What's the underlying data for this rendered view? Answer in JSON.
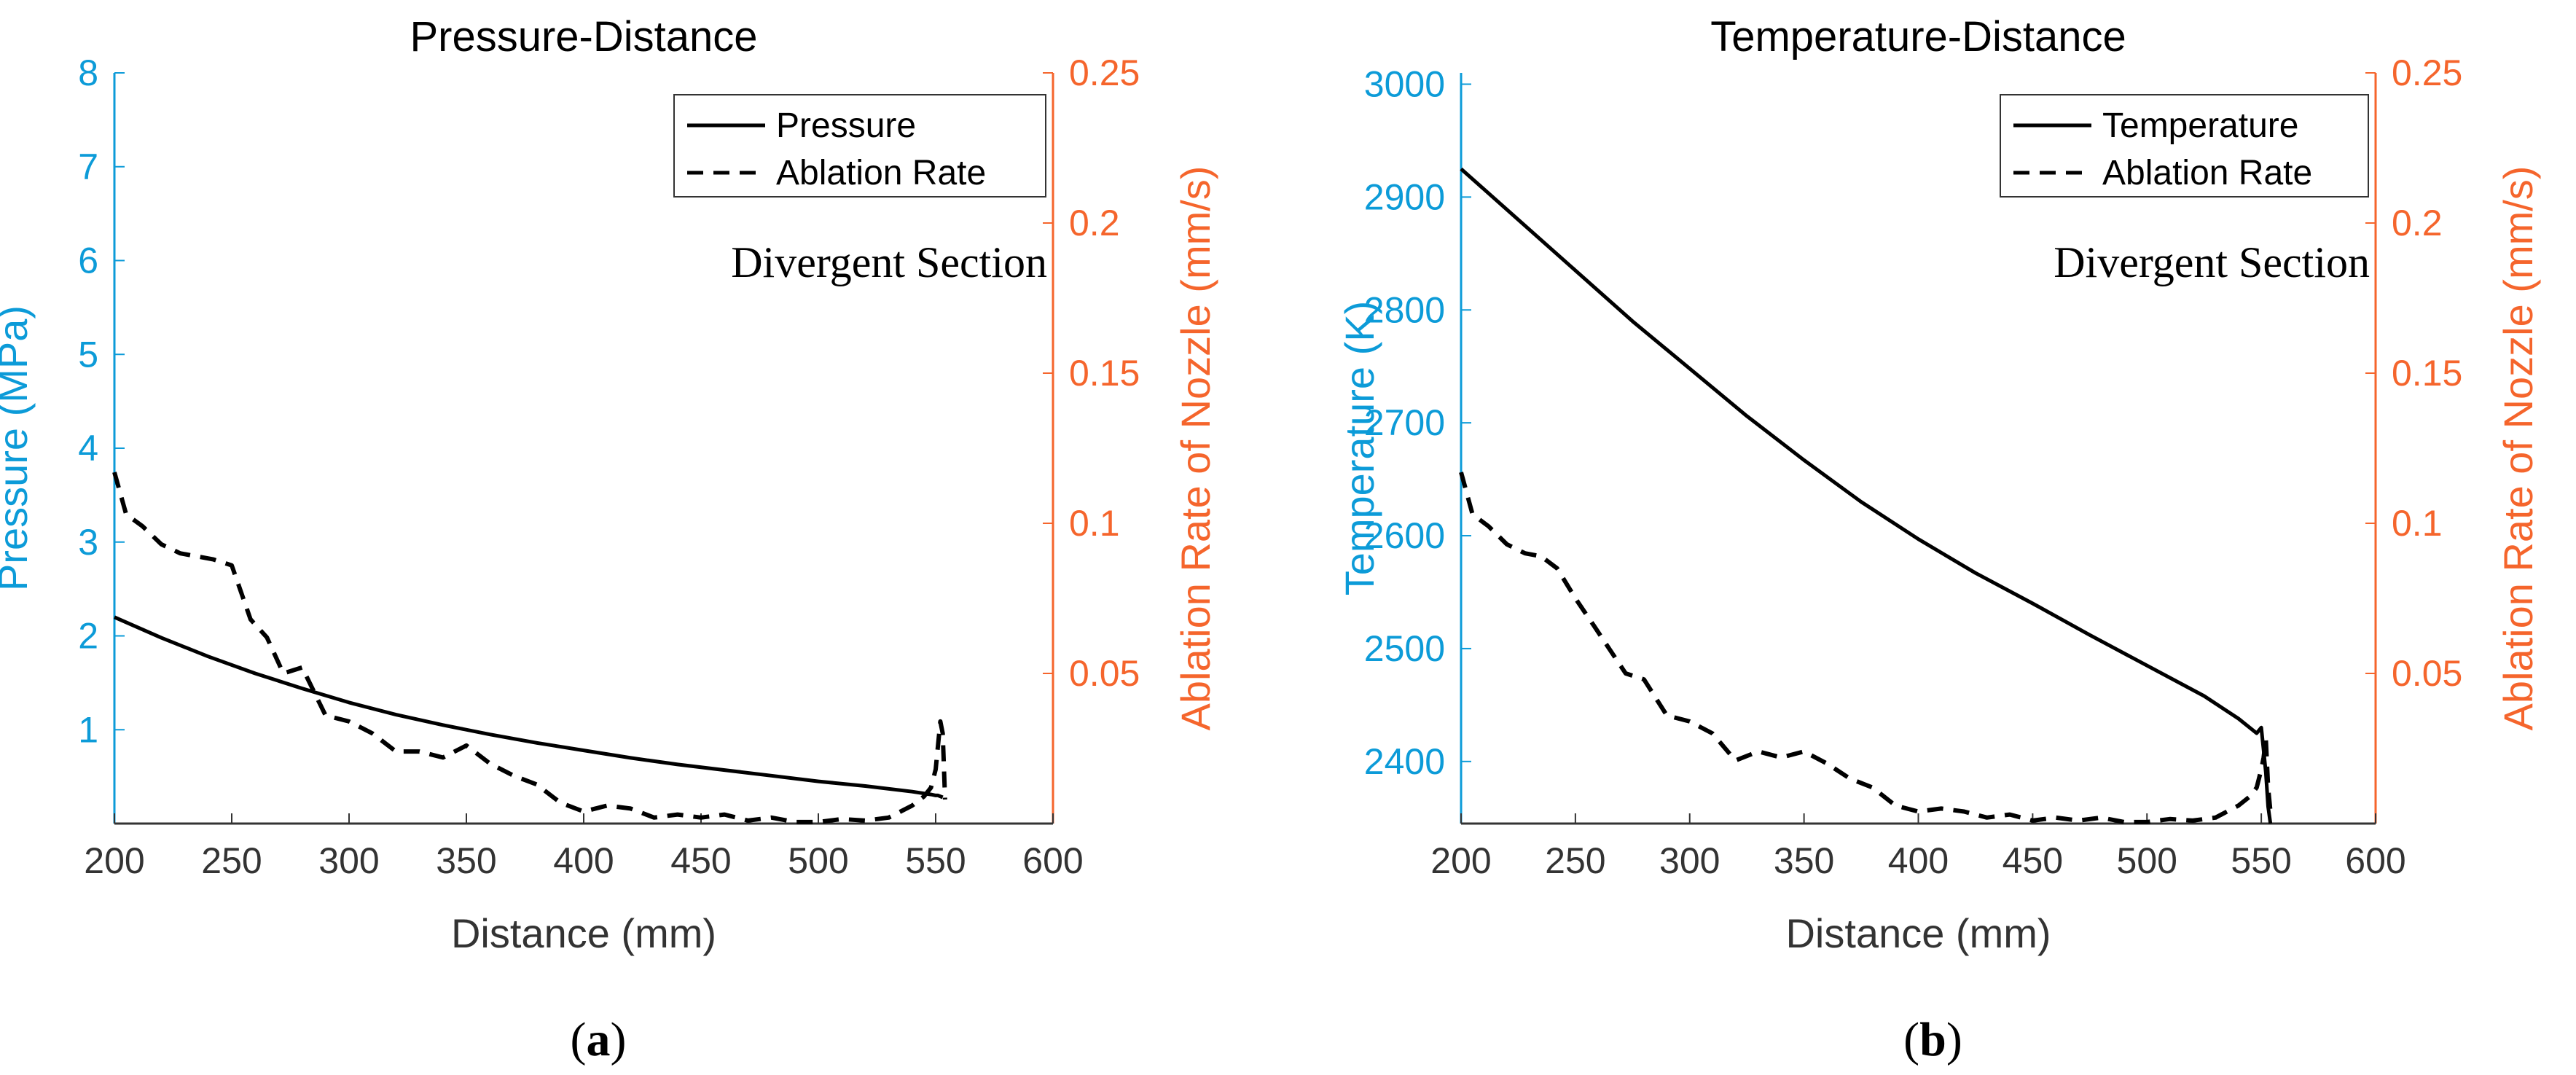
{
  "colors": {
    "left_axis": "#0c9bd8",
    "right_axis": "#f5652c",
    "bottom_axis": "#333333",
    "line": "#000000"
  },
  "chart_data": [
    {
      "type": "line",
      "panel": "a",
      "caption_prefix": "(",
      "caption_letter": "a",
      "caption_suffix": ")",
      "title": "Pressure-Distance",
      "xlabel": "Distance (mm)",
      "ylabel_left": "Pressure (MPa)",
      "ylabel_right": "Ablation Rate of Nozzle (mm/s)",
      "xlim": [
        200,
        600
      ],
      "ylim_left": [
        0,
        8
      ],
      "ylim_right": [
        0,
        0.25
      ],
      "xticks": [
        "200",
        "250",
        "300",
        "350",
        "400",
        "450",
        "500",
        "550",
        "600"
      ],
      "yticks_left": [
        "1",
        "2",
        "3",
        "4",
        "5",
        "6",
        "7",
        "8"
      ],
      "yticks_right": [
        "0.05",
        "0.1",
        "0.15",
        "0.2",
        "0.25"
      ],
      "legend_location": "top-right",
      "annotation": "Divergent Section",
      "series": [
        {
          "name": "Pressure",
          "axis": "left",
          "style": "solid",
          "x": [
            200,
            220,
            240,
            260,
            280,
            300,
            320,
            340,
            360,
            380,
            400,
            420,
            440,
            460,
            480,
            500,
            520,
            540,
            548,
            550,
            551,
            552,
            553
          ],
          "y": [
            2.2,
            1.98,
            1.78,
            1.6,
            1.44,
            1.29,
            1.16,
            1.05,
            0.95,
            0.86,
            0.78,
            0.7,
            0.63,
            0.57,
            0.51,
            0.45,
            0.4,
            0.34,
            0.31,
            0.3,
            0.3,
            0.29,
            0.28
          ]
        },
        {
          "name": "Ablation Rate",
          "axis": "right",
          "style": "dashed",
          "x": [
            200,
            205,
            212,
            220,
            228,
            235,
            242,
            250,
            258,
            265,
            272,
            280,
            290,
            300,
            310,
            320,
            330,
            340,
            350,
            360,
            370,
            380,
            390,
            400,
            410,
            420,
            430,
            440,
            450,
            460,
            470,
            480,
            490,
            500,
            510,
            520,
            530,
            540,
            545,
            548,
            550,
            551,
            552,
            553,
            554
          ],
          "y": [
            0.117,
            0.103,
            0.099,
            0.093,
            0.09,
            0.089,
            0.088,
            0.086,
            0.068,
            0.062,
            0.05,
            0.052,
            0.036,
            0.034,
            0.03,
            0.024,
            0.024,
            0.022,
            0.026,
            0.02,
            0.016,
            0.013,
            0.007,
            0.004,
            0.006,
            0.005,
            0.002,
            0.003,
            0.002,
            0.003,
            0.001,
            0.002,
            0.0005,
            0.0005,
            0.0015,
            0.001,
            0.002,
            0.006,
            0.009,
            0.012,
            0.018,
            0.026,
            0.034,
            0.03,
            0.008
          ]
        }
      ]
    },
    {
      "type": "line",
      "panel": "b",
      "caption_prefix": "(",
      "caption_letter": "b",
      "caption_suffix": ")",
      "title": "Temperature-Distance",
      "xlabel": "Distance (mm)",
      "ylabel_left": "Temperature (K)",
      "ylabel_right": "Ablation Rate of Nozzle (mm/s)",
      "xlim": [
        200,
        600
      ],
      "ylim_left": [
        2345,
        3010
      ],
      "ylim_right": [
        0,
        0.25
      ],
      "xticks": [
        "200",
        "250",
        "300",
        "350",
        "400",
        "450",
        "500",
        "550",
        "600"
      ],
      "yticks_left": [
        "2400",
        "2500",
        "2600",
        "2700",
        "2800",
        "2900",
        "3000"
      ],
      "yticks_right": [
        "0.05",
        "0.1",
        "0.15",
        "0.2",
        "0.25"
      ],
      "legend_location": "top-right",
      "annotation": "Divergent Section",
      "series": [
        {
          "name": "Temperature",
          "axis": "left",
          "style": "solid",
          "x": [
            200,
            225,
            250,
            275,
            300,
            325,
            350,
            375,
            400,
            425,
            450,
            475,
            500,
            525,
            540,
            548,
            550,
            551,
            552,
            553,
            554
          ],
          "y": [
            2925,
            2880,
            2835,
            2790,
            2748,
            2706,
            2667,
            2630,
            2597,
            2567,
            2540,
            2512,
            2485,
            2458,
            2438,
            2425,
            2430,
            2410,
            2390,
            2360,
            2345
          ]
        },
        {
          "name": "Ablation Rate",
          "axis": "right",
          "style": "dashed",
          "x": [
            200,
            205,
            212,
            220,
            228,
            235,
            242,
            250,
            258,
            265,
            272,
            280,
            290,
            300,
            310,
            320,
            330,
            340,
            350,
            360,
            370,
            380,
            390,
            400,
            410,
            420,
            430,
            440,
            450,
            460,
            470,
            480,
            490,
            500,
            510,
            520,
            530,
            540,
            545,
            548,
            550,
            551,
            552,
            553,
            554
          ],
          "y": [
            0.117,
            0.103,
            0.099,
            0.093,
            0.09,
            0.089,
            0.085,
            0.075,
            0.066,
            0.058,
            0.05,
            0.048,
            0.036,
            0.034,
            0.03,
            0.021,
            0.024,
            0.022,
            0.024,
            0.02,
            0.015,
            0.012,
            0.006,
            0.004,
            0.005,
            0.004,
            0.002,
            0.003,
            0.001,
            0.002,
            0.001,
            0.002,
            0.0005,
            0.0005,
            0.0015,
            0.001,
            0.002,
            0.006,
            0.009,
            0.012,
            0.018,
            0.022,
            0.028,
            0.012,
            0.004
          ]
        }
      ]
    }
  ]
}
